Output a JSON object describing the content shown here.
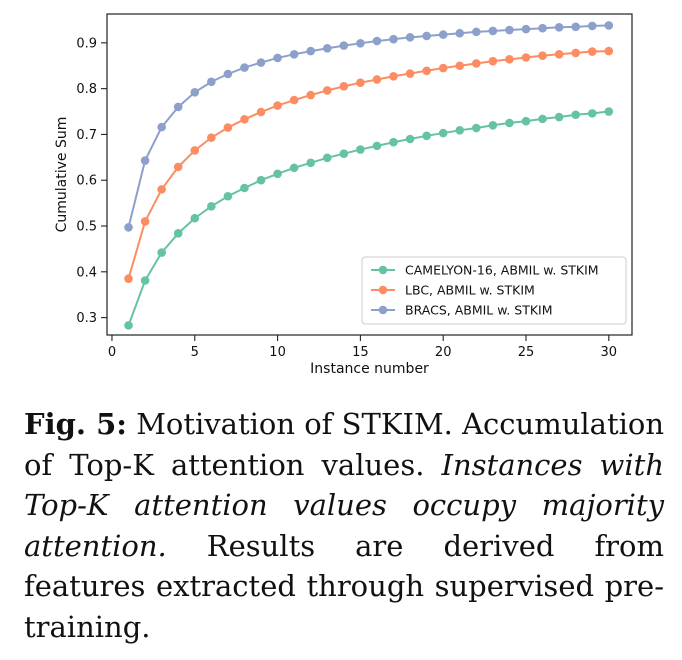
{
  "chart_data": {
    "type": "line",
    "title": "",
    "xlabel": "Instance number",
    "ylabel": "Cumulative Sum",
    "xlim": [
      -0.3,
      31.4
    ],
    "ylim": [
      0.262,
      0.963
    ],
    "xticks": [
      0,
      5,
      10,
      15,
      20,
      25,
      30
    ],
    "yticks": [
      0.3,
      0.4,
      0.5,
      0.6,
      0.7,
      0.8,
      0.9
    ],
    "legend_position": "lower-right",
    "x": [
      1,
      2,
      3,
      4,
      5,
      6,
      7,
      8,
      9,
      10,
      11,
      12,
      13,
      14,
      15,
      16,
      17,
      18,
      19,
      20,
      21,
      22,
      23,
      24,
      25,
      26,
      27,
      28,
      29,
      30
    ],
    "series": [
      {
        "name": "CAMELYON-16, ABMIL w. STKIM",
        "color": "#66c2a5",
        "values": [
          0.283,
          0.381,
          0.442,
          0.484,
          0.517,
          0.543,
          0.565,
          0.583,
          0.6,
          0.614,
          0.627,
          0.638,
          0.649,
          0.658,
          0.667,
          0.675,
          0.683,
          0.69,
          0.697,
          0.703,
          0.709,
          0.714,
          0.72,
          0.725,
          0.729,
          0.734,
          0.738,
          0.743,
          0.746,
          0.75
        ]
      },
      {
        "name": "LBC, ABMIL w. STKIM",
        "color": "#fc8d62",
        "values": [
          0.385,
          0.51,
          0.58,
          0.629,
          0.665,
          0.693,
          0.715,
          0.733,
          0.749,
          0.763,
          0.775,
          0.786,
          0.796,
          0.805,
          0.813,
          0.82,
          0.827,
          0.833,
          0.839,
          0.845,
          0.85,
          0.855,
          0.86,
          0.864,
          0.868,
          0.872,
          0.875,
          0.878,
          0.881,
          0.882
        ]
      },
      {
        "name": "BRACS, ABMIL w. STKIM",
        "color": "#8da0cb",
        "values": [
          0.497,
          0.643,
          0.716,
          0.76,
          0.792,
          0.815,
          0.832,
          0.846,
          0.857,
          0.867,
          0.875,
          0.882,
          0.888,
          0.894,
          0.899,
          0.904,
          0.908,
          0.912,
          0.915,
          0.918,
          0.921,
          0.924,
          0.926,
          0.928,
          0.93,
          0.932,
          0.934,
          0.935,
          0.937,
          0.938
        ]
      }
    ]
  },
  "caption": {
    "label": "Fig. 5:",
    "text1": "Motivation of STKIM. Accumulation of Top-K attention values.",
    "italic": "Instances with Top-K attention values occupy majority attention.",
    "text2": "Results are derived from features extracted through supervised pre-training."
  }
}
